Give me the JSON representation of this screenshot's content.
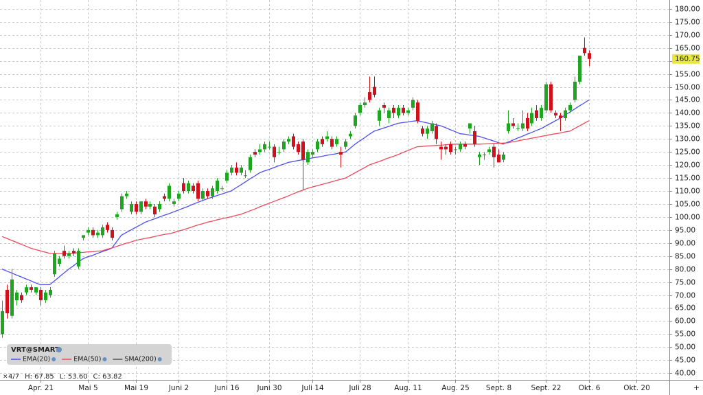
{
  "chart_data": {
    "type": "candlestick",
    "title": "VRT@SMART",
    "info": {
      "date": "4/7",
      "high": "H: 67.85",
      "low": "L: 53.60",
      "close": "C: 63.82"
    },
    "categories": [
      null,
      null,
      null,
      null,
      null,
      null,
      null,
      null,
      "Apr. 21",
      null,
      null,
      null,
      null,
      null,
      null,
      null,
      null,
      null,
      "Mai 5",
      null,
      null,
      null,
      null,
      null,
      null,
      null,
      null,
      null,
      "Mai 19",
      null,
      null,
      null,
      null,
      null,
      null,
      null,
      null,
      "Juni 2",
      null,
      null,
      null,
      null,
      null,
      null,
      null,
      null,
      null,
      "Juni 16",
      null,
      null,
      null,
      null,
      null,
      null,
      null,
      null,
      "Juni 30",
      null,
      null,
      null,
      null,
      null,
      null,
      null,
      null,
      "Juli 14",
      null,
      null,
      null,
      null,
      null,
      null,
      null,
      null,
      null,
      "Juli 28",
      null,
      null,
      null,
      null,
      null,
      null,
      null,
      null,
      null,
      "Aug. 11",
      null,
      null,
      null,
      null,
      null,
      null,
      null,
      null,
      null,
      "Aug. 25",
      null,
      null,
      null,
      null,
      null,
      null,
      null,
      null,
      "Sept. 8",
      null,
      null,
      null,
      null,
      null,
      null,
      null,
      null,
      null,
      "Sept. 22",
      null,
      null,
      null,
      null,
      null,
      null,
      null,
      null,
      "Okt. 6",
      null,
      null,
      null,
      null,
      null,
      null,
      null,
      null,
      null,
      "Okt. 20"
    ],
    "candles": {
      "up_color": "#1fa51f",
      "down_color": "#d0101a",
      "open": [
        55,
        72,
        62,
        68,
        70,
        71,
        73,
        71,
        72,
        68,
        70,
        78,
        82,
        87,
        85,
        87,
        81,
        92,
        94,
        95,
        93,
        93,
        97,
        95,
        100,
        103,
        108,
        102,
        105,
        102,
        106,
        104,
        104,
        103,
        108,
        107,
        105,
        107,
        113,
        110,
        112,
        113,
        107,
        110,
        108,
        110,
        111,
        114,
        117,
        119,
        117,
        116,
        118,
        125,
        125,
        126,
        127,
        127,
        125,
        126,
        129,
        131,
        128,
        129,
        121,
        124,
        126,
        130,
        130,
        130,
        128,
        125,
        127,
        131,
        135,
        140,
        143,
        148,
        150,
        137,
        143,
        138,
        142,
        139,
        142,
        140,
        142,
        144,
        134,
        132,
        133,
        135,
        127,
        127,
        128,
        126,
        126,
        128,
        134,
        133,
        123,
        124,
        125,
        127,
        124,
        122,
        133,
        136,
        134,
        134,
        138,
        136,
        141,
        138,
        141,
        151,
        140,
        139,
        138,
        141,
        145,
        152,
        165,
        163,
        null,
        null,
        null,
        null,
        null,
        null,
        null,
        null,
        null,
        null
      ],
      "high": [
        67.85,
        74,
        80,
        72,
        71,
        74,
        74,
        73,
        73,
        72,
        73,
        87,
        85,
        89,
        87,
        88,
        88,
        93,
        96,
        96,
        95,
        97,
        98,
        96,
        102,
        109,
        110,
        106,
        106,
        106,
        107,
        106,
        105,
        106,
        109,
        113,
        107,
        110,
        115,
        114,
        113,
        114,
        111,
        111,
        112,
        115,
        112,
        118,
        120,
        121,
        120,
        118,
        124,
        126,
        128,
        129,
        129,
        128,
        127,
        130,
        131,
        132,
        129,
        130,
        126,
        126,
        130,
        131,
        133,
        131,
        131,
        127,
        130,
        133,
        140,
        144,
        146,
        154,
        154,
        142,
        144,
        142,
        143,
        143,
        143,
        142,
        146,
        145,
        135,
        135,
        137,
        136,
        129,
        128,
        129,
        127,
        129,
        129,
        136,
        135,
        125,
        125,
        127,
        128,
        126,
        125,
        141,
        138,
        136,
        141,
        140,
        142,
        143,
        143,
        152,
        152,
        141,
        140,
        142,
        144,
        154,
        162,
        169,
        164,
        null,
        null,
        null,
        null,
        null,
        null,
        null,
        null,
        null,
        null
      ],
      "low": [
        53.6,
        61,
        61,
        66,
        67,
        70,
        71,
        70,
        66,
        67,
        69,
        77,
        81,
        84,
        84,
        85,
        80,
        91,
        93,
        92,
        92,
        92,
        94,
        91,
        99,
        102,
        107,
        101,
        101,
        101,
        103,
        103,
        100,
        102,
        106,
        106,
        104,
        106,
        109,
        109,
        109,
        106,
        106,
        107,
        107,
        109,
        110,
        113,
        116,
        116,
        116,
        115,
        117,
        123,
        124,
        125,
        126,
        121,
        124,
        125,
        128,
        126,
        124,
        110.5,
        120,
        123,
        125,
        127,
        129,
        126,
        127,
        119,
        126,
        130,
        134,
        139,
        142,
        144,
        146,
        135,
        140,
        136,
        138,
        138,
        139,
        139,
        141,
        136,
        131,
        130,
        132,
        128,
        122,
        124,
        124,
        124,
        125,
        126,
        132,
        127,
        120,
        122,
        124,
        119,
        121,
        121,
        132,
        134,
        133,
        133,
        133,
        135,
        137,
        137,
        140,
        140,
        138,
        133,
        137,
        140,
        144,
        151,
        162,
        158,
        null,
        null,
        null,
        null,
        null,
        null,
        null,
        null,
        null,
        null
      ],
      "close": [
        63.82,
        63,
        76,
        71,
        68,
        73,
        72,
        73,
        68,
        71,
        72,
        86,
        84,
        85,
        86,
        86,
        87,
        93,
        95,
        93,
        94,
        96,
        95,
        92,
        101,
        108,
        109,
        105,
        102,
        106,
        104,
        105,
        101,
        105,
        107,
        112,
        106,
        109,
        110,
        113,
        110,
        107,
        110,
        108,
        111,
        114,
        111,
        117,
        119,
        117,
        119,
        116,
        123,
        124,
        126,
        128,
        127,
        123,
        125,
        129,
        130,
        127,
        125,
        122,
        125,
        125,
        129,
        128,
        131,
        127,
        130,
        124,
        129,
        132,
        139,
        143,
        144,
        145,
        147,
        141,
        142,
        141,
        140,
        142,
        140,
        141,
        145,
        137,
        132,
        134,
        136,
        130,
        126,
        126,
        125,
        126,
        128,
        127,
        136,
        128,
        124,
        124,
        126,
        123,
        121,
        124,
        136,
        135,
        134,
        136,
        134,
        140,
        138,
        142,
        151,
        141,
        139,
        138,
        141,
        143,
        152,
        162,
        163,
        160.75,
        null,
        null,
        null,
        null,
        null,
        null,
        null,
        null,
        null,
        null
      ]
    },
    "series": [
      {
        "name": "EMA(20)",
        "color": "#4a4ff0",
        "values": [
          80,
          79.2,
          78.5,
          77.7,
          77,
          76.2,
          75.5,
          74.7,
          74,
          74,
          74,
          75.5,
          77,
          78.5,
          80,
          81.3,
          82.7,
          84,
          84.7,
          85.3,
          86,
          86.7,
          87.3,
          88,
          90.5,
          93,
          94,
          95,
          96,
          97,
          98,
          98.7,
          99.3,
          100,
          100.7,
          101.3,
          102,
          102.7,
          103.4,
          104.1,
          104.9,
          105.6,
          106.3,
          107,
          107.6,
          108.2,
          108.8,
          109.4,
          110,
          111.2,
          112.3,
          113.5,
          114.7,
          115.8,
          117,
          117.7,
          118.3,
          119,
          119.7,
          120.3,
          121,
          121.3,
          121.7,
          122,
          122.3,
          122.7,
          123,
          123.3,
          123.7,
          124,
          124.3,
          124.7,
          125,
          126.5,
          128,
          129.3,
          130.5,
          131.8,
          133,
          133.6,
          134.2,
          134.8,
          135.4,
          136,
          136.3,
          136.5,
          136.8,
          137,
          136.6,
          136.2,
          135.8,
          135.4,
          135,
          134.3,
          133.5,
          132.8,
          132,
          131.8,
          131.5,
          131.3,
          131,
          130.4,
          129.8,
          129.2,
          128.6,
          128,
          128.8,
          129.5,
          130.3,
          131,
          131.8,
          132.5,
          133.3,
          134,
          135,
          136,
          137,
          138,
          139.2,
          140.3,
          141.5,
          142.7,
          143.8,
          145,
          null,
          null,
          null,
          null,
          null,
          null,
          null,
          null,
          null,
          null
        ]
      },
      {
        "name": "EMA(50)",
        "color": "#f0485a",
        "values": [
          92.5,
          91.8,
          91,
          90.3,
          89.5,
          88.8,
          88,
          87.5,
          87,
          86.5,
          86,
          86,
          86,
          86,
          86,
          86.1,
          86.3,
          86.4,
          86.6,
          86.7,
          86.9,
          87,
          87.6,
          88.1,
          88.7,
          89.3,
          89.9,
          90.4,
          91,
          91.4,
          91.8,
          92.1,
          92.5,
          92.9,
          93.3,
          93.6,
          94,
          94.6,
          95.1,
          95.7,
          96.3,
          96.9,
          97.4,
          98,
          98.4,
          98.9,
          99.3,
          99.7,
          100.1,
          100.6,
          101,
          101.7,
          102.4,
          103.1,
          103.9,
          104.6,
          105.3,
          106,
          106.7,
          107.4,
          108.1,
          108.9,
          109.6,
          110.3,
          111,
          111.5,
          112,
          112.5,
          113,
          113.5,
          114,
          114.5,
          115,
          116,
          117,
          118,
          119,
          120,
          120.7,
          121.3,
          122,
          122.7,
          123.3,
          124,
          124.8,
          125.5,
          126.3,
          127,
          127.1,
          127.3,
          127.4,
          127.5,
          127.6,
          127.8,
          127.9,
          128,
          128,
          128,
          128,
          128,
          128,
          128.1,
          128.2,
          128.3,
          128.3,
          128.4,
          128.5,
          128.9,
          129.2,
          129.6,
          129.9,
          130.3,
          130.6,
          131,
          131.3,
          131.7,
          132,
          132.3,
          132.7,
          133,
          134,
          135,
          136,
          137,
          null,
          null,
          null,
          null,
          null,
          null,
          null,
          null,
          null,
          null
        ]
      },
      {
        "name": "SMA(200)",
        "color": "#555555",
        "values": [
          null,
          null,
          null,
          null,
          null,
          null,
          null,
          null,
          null,
          null,
          null,
          null,
          null,
          null,
          null,
          null,
          null,
          null,
          null,
          null,
          null,
          null,
          null,
          null,
          null,
          null,
          null,
          null,
          null,
          null,
          null,
          null,
          null,
          null,
          null,
          null,
          null,
          null,
          null,
          null,
          null,
          null,
          null,
          null,
          null,
          null,
          null,
          null,
          null,
          null,
          null,
          null,
          null,
          null,
          null,
          null,
          null,
          null,
          null,
          null,
          null,
          null,
          null,
          null,
          null,
          null,
          null,
          null,
          null,
          null,
          null,
          null,
          null,
          null,
          null,
          null,
          null,
          null,
          null,
          null,
          null,
          null,
          null,
          null,
          null,
          null,
          null,
          null,
          null,
          null,
          null,
          null,
          null,
          null,
          null,
          null,
          null,
          null,
          null,
          null,
          null,
          null,
          null,
          null,
          null,
          null,
          null,
          null,
          null,
          null,
          null,
          null,
          null,
          null,
          null,
          null,
          null,
          null,
          null,
          null,
          null,
          null,
          null,
          null,
          null,
          null,
          null,
          null,
          null,
          null,
          null,
          null,
          null,
          null
        ]
      }
    ],
    "ylim": [
      37.4,
      183.4
    ],
    "yticks": [
      {
        "value": 40,
        "label": "40.00"
      },
      {
        "value": 45,
        "label": "45.00"
      },
      {
        "value": 50,
        "label": "50.00"
      },
      {
        "value": 55,
        "label": "55.00"
      },
      {
        "value": 60,
        "label": "60.00"
      },
      {
        "value": 65,
        "label": "65.00"
      },
      {
        "value": 70,
        "label": "70.00"
      },
      {
        "value": 75,
        "label": "75.00"
      },
      {
        "value": 80,
        "label": "80.00"
      },
      {
        "value": 85,
        "label": "85.00"
      },
      {
        "value": 90,
        "label": "90.00"
      },
      {
        "value": 95,
        "label": "95.00"
      },
      {
        "value": 100,
        "label": "100.00"
      },
      {
        "value": 105,
        "label": "105.00"
      },
      {
        "value": 110,
        "label": "110.00"
      },
      {
        "value": 115,
        "label": "115.00"
      },
      {
        "value": 120,
        "label": "120.00"
      },
      {
        "value": 125,
        "label": "125.00"
      },
      {
        "value": 130,
        "label": "130.00"
      },
      {
        "value": 135,
        "label": "135.00"
      },
      {
        "value": 140,
        "label": "140.00"
      },
      {
        "value": 145,
        "label": "145.00"
      },
      {
        "value": 150,
        "label": "150.00"
      },
      {
        "value": 155,
        "label": "155.00"
      },
      {
        "value": 160,
        "label": "160.00"
      },
      {
        "value": 165,
        "label": "165.00"
      },
      {
        "value": 170,
        "label": "170.00"
      },
      {
        "value": 175,
        "label": "175.00"
      },
      {
        "value": 180,
        "label": "180.00"
      }
    ],
    "grid": true,
    "last_price_color": "#e8e83a"
  }
}
